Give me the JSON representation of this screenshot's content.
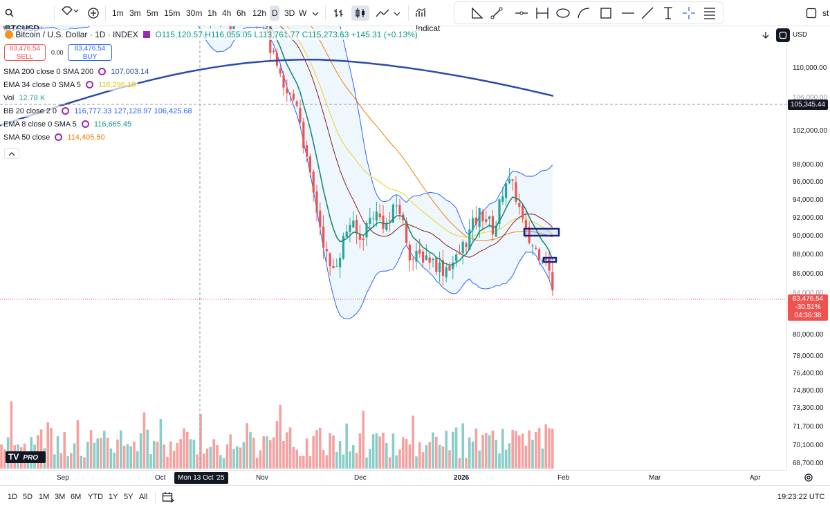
{
  "toolbar": {
    "symbol": "BTCUSD",
    "timeframes": [
      "1m",
      "3m",
      "5m",
      "15m",
      "30m",
      "1h",
      "4h",
      "6h",
      "12h",
      "D",
      "3D",
      "W"
    ],
    "active_timeframe": "D",
    "indicators_label": "Indicat",
    "right_label": "st"
  },
  "legend": {
    "title": "Bitcoin / U.S. Dollar · 1D · INDEX",
    "ohlc": "O115,120.57 H116,055.05 L113,761.77 C115,273.63 +145.31 (+0.13%)",
    "sell_price": "83,476.54",
    "sell_label": "SELL",
    "spread": "0.00",
    "buy_price": "83,476.54",
    "buy_label": "BUY",
    "indicators": [
      {
        "label": "SMA 200 close 0 SMA 200",
        "value": "107,003.14",
        "color": "#2e4aa8"
      },
      {
        "label": "EMA 34 close 0 SMA 5",
        "value": "116,296.18",
        "color": "#f0d94a"
      },
      {
        "label": "Vol",
        "value": "12.78 K",
        "color": "#26a69a"
      },
      {
        "label": "BB 20 close 2 0",
        "value": "116,777.33 127,128.97 106,425.68",
        "color": "#2962ff"
      },
      {
        "label": "EMA 8 close 0 SMA 5",
        "value": "116,665.45",
        "color": "#26a69a"
      },
      {
        "label": "SMA 50 close",
        "value": "114,405.50",
        "color": "#f57c00"
      }
    ]
  },
  "price_scale": {
    "currency": "USD",
    "labels": [
      "110,000.00",
      "106,000.00",
      "102,000.00",
      "98,000.00",
      "96,000.00",
      "94,000.00",
      "92,000.00",
      "90,000.00",
      "88,000.00",
      "86,000.00",
      "84,000.00",
      "80,000.00",
      "78,000.00",
      "76,400.00",
      "74,800.00",
      "73,300.00",
      "71,700.00",
      "70,100.00",
      "68,700.00"
    ],
    "crosshair_price": "105,345.44",
    "last_price": "83,476.54",
    "last_change": "-30.51%",
    "countdown": "04:36:38"
  },
  "time_axis": {
    "labels": [
      "Sep",
      "Oct",
      "Nov",
      "Dec",
      "2026",
      "Feb",
      "Mar",
      "Apr"
    ],
    "crosshair_date": "Mon 13 Oct '25"
  },
  "bottom": {
    "ranges": [
      "1D",
      "5D",
      "1M",
      "3M",
      "6M",
      "YTD",
      "1Y",
      "5Y",
      "All"
    ],
    "clock": "19:23:22 UTC"
  },
  "logo": "PRO",
  "colors": {
    "up": "#26a69a",
    "down": "#ef5350",
    "sma200": "#2e4aa8",
    "bb": "#2962ff"
  }
}
